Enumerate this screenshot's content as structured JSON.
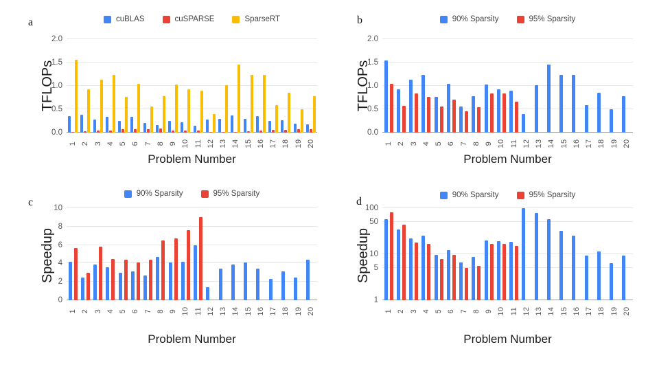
{
  "figure": {
    "background": "#ffffff",
    "panel_labels": [
      "a",
      "b",
      "c",
      "d"
    ],
    "colors": {
      "blue": "#4285F4",
      "red": "#EA4335",
      "yellow": "#FBBC04"
    }
  },
  "chart_data": [
    {
      "panel_label": "a",
      "type": "bar",
      "title": "",
      "xlabel": "Problem Number",
      "ylabel": "TFLOPs",
      "yscale": "linear",
      "ylim": [
        0,
        2.0
      ],
      "yticks": [
        0.0,
        0.5,
        1.0,
        1.5,
        2.0
      ],
      "ytick_labels": [
        "0.0",
        "0.5",
        "1.0",
        "1.5",
        "2.0"
      ],
      "grid": true,
      "legend_position": "top",
      "categories": [
        "1",
        "2",
        "3",
        "4",
        "5",
        "6",
        "7",
        "8",
        "9",
        "10",
        "11",
        "12",
        "13",
        "14",
        "15",
        "16",
        "17",
        "18",
        "19",
        "20"
      ],
      "series": [
        {
          "name": "cuBLAS",
          "color": "#4285F4",
          "values": [
            0.36,
            0.38,
            0.28,
            0.34,
            0.25,
            0.34,
            0.21,
            0.16,
            0.25,
            0.22,
            0.15,
            0.28,
            0.3,
            0.37,
            0.3,
            0.35,
            0.25,
            0.27,
            0.19,
            0.18
          ]
        },
        {
          "name": "cuSPARSE",
          "color": "#EA4335",
          "values": [
            0.02,
            0.03,
            0.05,
            0.05,
            0.08,
            0.08,
            0.08,
            0.09,
            0.05,
            0.05,
            0.05,
            0.01,
            0.01,
            0.02,
            0.03,
            0.05,
            0.06,
            0.06,
            0.08,
            0.07
          ]
        },
        {
          "name": "SparseRT",
          "color": "#FBBC04",
          "values": [
            1.56,
            0.93,
            1.13,
            1.24,
            0.77,
            1.05,
            0.56,
            0.78,
            1.03,
            0.93,
            0.9,
            0.39,
            1.02,
            1.46,
            1.24,
            1.23,
            0.59,
            0.86,
            0.5,
            0.78
          ]
        }
      ]
    },
    {
      "panel_label": "b",
      "type": "bar",
      "title": "",
      "xlabel": "Problem Number",
      "ylabel": "TFLOPs",
      "yscale": "linear",
      "ylim": [
        0,
        2.0
      ],
      "yticks": [
        0.0,
        0.5,
        1.0,
        1.5,
        2.0
      ],
      "ytick_labels": [
        "0.0",
        "0.5",
        "1.0",
        "1.5",
        "2.0"
      ],
      "grid": true,
      "legend_position": "top",
      "categories": [
        "1",
        "2",
        "3",
        "4",
        "5",
        "6",
        "7",
        "8",
        "9",
        "10",
        "11",
        "12",
        "13",
        "14",
        "15",
        "16",
        "17",
        "18",
        "19",
        "20"
      ],
      "series": [
        {
          "name": "90% Sparsity",
          "color": "#4285F4",
          "values": [
            1.55,
            0.93,
            1.13,
            1.24,
            0.77,
            1.05,
            0.56,
            0.78,
            1.03,
            0.93,
            0.9,
            0.39,
            1.02,
            1.46,
            1.24,
            1.23,
            0.59,
            0.86,
            0.5,
            0.78
          ]
        },
        {
          "name": "95% Sparsity",
          "color": "#EA4335",
          "values": [
            1.04,
            0.57,
            0.84,
            0.77,
            0.56,
            0.71,
            0.46,
            0.54,
            0.84,
            0.84,
            0.66,
            null,
            null,
            null,
            null,
            null,
            null,
            null,
            null,
            null
          ]
        }
      ]
    },
    {
      "panel_label": "c",
      "type": "bar",
      "title": "",
      "xlabel": "Problem Number",
      "ylabel": "Speedup",
      "yscale": "linear",
      "ylim": [
        0,
        10
      ],
      "yticks": [
        0,
        2,
        4,
        6,
        8,
        10
      ],
      "ytick_labels": [
        "0",
        "2",
        "4",
        "6",
        "8",
        "10"
      ],
      "grid": true,
      "legend_position": "top",
      "categories": [
        "1",
        "2",
        "3",
        "4",
        "5",
        "6",
        "7",
        "8",
        "9",
        "10",
        "11",
        "12",
        "13",
        "14",
        "15",
        "16",
        "17",
        "18",
        "19",
        "20"
      ],
      "series": [
        {
          "name": "90% Sparsity",
          "color": "#4285F4",
          "values": [
            4.2,
            2.5,
            3.9,
            3.6,
            3.0,
            3.1,
            2.7,
            4.7,
            4.1,
            4.2,
            6.0,
            1.4,
            3.4,
            3.9,
            4.1,
            3.4,
            2.3,
            3.1,
            2.5,
            4.4
          ]
        },
        {
          "name": "95% Sparsity",
          "color": "#EA4335",
          "values": [
            5.7,
            3.0,
            5.8,
            4.5,
            4.4,
            4.1,
            4.4,
            6.5,
            6.7,
            7.6,
            9.0,
            null,
            null,
            null,
            null,
            null,
            null,
            null,
            null,
            null
          ]
        }
      ]
    },
    {
      "panel_label": "d",
      "type": "bar",
      "title": "",
      "xlabel": "Problem Number",
      "ylabel": "Speedup",
      "yscale": "log",
      "ylim": [
        1,
        100
      ],
      "yticks": [
        1,
        5,
        10,
        50,
        100
      ],
      "ytick_labels": [
        "1",
        "5",
        "10",
        "50",
        "100"
      ],
      "grid": true,
      "legend_position": "top",
      "categories": [
        "1",
        "2",
        "3",
        "4",
        "5",
        "6",
        "7",
        "8",
        "9",
        "10",
        "11",
        "12",
        "13",
        "14",
        "15",
        "16",
        "17",
        "18",
        "19",
        "20"
      ],
      "series": [
        {
          "name": "90% Sparsity",
          "color": "#4285F4",
          "values": [
            58,
            34,
            22,
            25,
            9.7,
            12.5,
            6.6,
            8.6,
            20,
            19,
            18.5,
            100,
            78,
            57,
            32,
            25,
            9.3,
            11.5,
            6.5,
            9.2
          ]
        },
        {
          "name": "95% Sparsity",
          "color": "#EA4335",
          "values": [
            82,
            44,
            18,
            17,
            8,
            9.8,
            5.0,
            5.6,
            17,
            17,
            15,
            null,
            null,
            null,
            null,
            null,
            null,
            null,
            null,
            null
          ]
        }
      ]
    }
  ]
}
